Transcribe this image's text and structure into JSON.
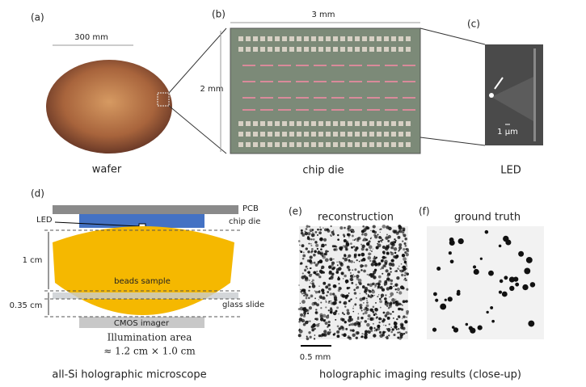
{
  "panel_a": {
    "tag": "(a)",
    "size": "300 mm",
    "caption": "wafer"
  },
  "panel_b": {
    "tag": "(b)",
    "width": "3 mm",
    "height": "2 mm",
    "caption": "chip die"
  },
  "panel_c": {
    "tag": "(c)",
    "scale": "1 μm",
    "caption": "LED"
  },
  "panel_d": {
    "tag": "(d)",
    "pcb": "PCB",
    "led": "LED",
    "chip": "chip die",
    "gap": "1 cm",
    "sample": "beads sample",
    "slide_gap": "0.35 cm",
    "slide": "glass slide",
    "imager": "CMOS imager",
    "area_title": "Illumination area",
    "area_value": "≈ 1.2 cm × 1.0 cm",
    "caption": "all-Si holographic microscope"
  },
  "panel_e": {
    "tag": "(e)",
    "title": "reconstruction",
    "scale": "0.5 mm"
  },
  "panel_f": {
    "tag": "(f)",
    "title": "ground truth"
  },
  "caption_ef": "holographic imaging results (close-up)"
}
